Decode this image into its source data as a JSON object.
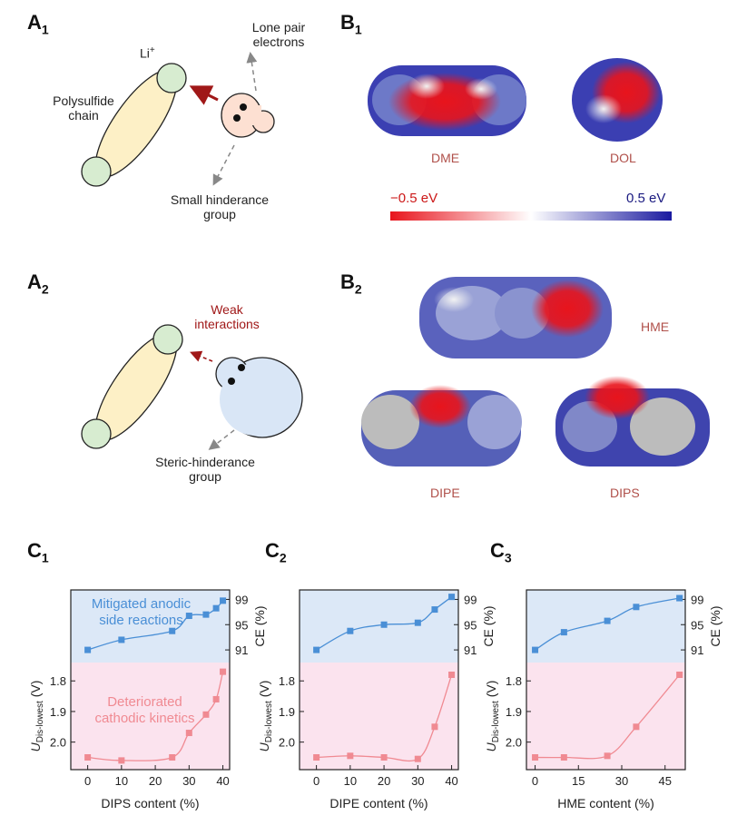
{
  "panels": {
    "a1": "A",
    "a1_sub": "1",
    "a2": "A",
    "a2_sub": "2",
    "b1": "B",
    "b1_sub": "1",
    "b2": "B",
    "b2_sub": "2",
    "c1": "C",
    "c1_sub": "1",
    "c2": "C",
    "c2_sub": "2",
    "c3": "C",
    "c3_sub": "3"
  },
  "schematic_a1": {
    "li_label": "Li",
    "li_sup": "+",
    "lone_pair": "Lone pair electrons",
    "polysulfide": "Polysulfide chain",
    "small_group": "Small hinderance group"
  },
  "schematic_a2": {
    "weak": "Weak interactions",
    "steric": "Steric-hinderance group"
  },
  "esp": {
    "dme": "DME",
    "dol": "DOL",
    "scale_min": "−0.5 eV",
    "scale_max": "0.5 eV",
    "hme": "HME",
    "dipe": "DIPE",
    "dips": "DIPS"
  },
  "colors": {
    "negative": "#e8141c",
    "positive": "#1a1aa0",
    "blue_series": "#4a8fd6",
    "pink_series": "#f08a92",
    "blue_bg": "#dce8f7",
    "pink_bg": "#fbe3ee",
    "dark_red": "#a01818"
  },
  "chart_data": [
    {
      "type": "line",
      "xlabel": "DIPS content (%)",
      "xlim": [
        -5,
        42
      ],
      "xticks": [
        0,
        10,
        20,
        30,
        40
      ],
      "x_ce": [
        0,
        10,
        25,
        30,
        35,
        38,
        40
      ],
      "ce": [
        91,
        92.6,
        94,
        96.4,
        96.6,
        97.6,
        98.8
      ],
      "ce_label": "CE (%)",
      "ce_ticks": [
        91,
        95,
        99
      ],
      "x_u": [
        0,
        10,
        25,
        30,
        35,
        38,
        40
      ],
      "u": [
        2.05,
        2.06,
        2.05,
        1.97,
        1.91,
        1.86,
        1.77
      ],
      "u_label_main": "U",
      "u_label_sub": "Dis-lowest",
      "u_label_unit": " (V)",
      "u_ticks": [
        "1.8",
        "1.9",
        "2.0"
      ],
      "u_tick_values": [
        1.8,
        1.9,
        2.0
      ],
      "annot_top": [
        "Mitigated anodic",
        "side reactions"
      ],
      "annot_bottom": [
        "Deteriorated",
        "cathodic kinetics"
      ]
    },
    {
      "type": "line",
      "xlabel": "DIPE content (%)",
      "xlim": [
        -5,
        42
      ],
      "xticks": [
        0,
        10,
        20,
        30,
        40
      ],
      "x_ce": [
        0,
        10,
        20,
        30,
        35,
        40
      ],
      "ce": [
        91,
        94,
        95,
        95.3,
        97.4,
        99.4
      ],
      "ce_label": "CE (%)",
      "ce_ticks": [
        91,
        95,
        99
      ],
      "x_u": [
        0,
        10,
        20,
        30,
        35,
        40
      ],
      "u": [
        2.05,
        2.045,
        2.05,
        2.055,
        1.95,
        1.78
      ],
      "u_label_main": "U",
      "u_label_sub": "Dis-lowest",
      "u_label_unit": " (V)",
      "u_ticks": [
        "1.8",
        "1.9",
        "2.0"
      ],
      "u_tick_values": [
        1.8,
        1.9,
        2.0
      ]
    },
    {
      "type": "line",
      "xlabel": "HME content (%)",
      "xlim": [
        -3,
        52
      ],
      "xticks": [
        0,
        15,
        30,
        45
      ],
      "x_ce": [
        0,
        10,
        25,
        35,
        50
      ],
      "ce": [
        91,
        93.8,
        95.6,
        97.8,
        99.2
      ],
      "ce_label": "CE (%)",
      "ce_ticks": [
        91,
        95,
        99
      ],
      "x_u": [
        0,
        10,
        25,
        35,
        50
      ],
      "u": [
        2.05,
        2.05,
        2.045,
        1.95,
        1.78
      ],
      "u_label_main": "U",
      "u_label_sub": "Dis-lowest",
      "u_label_unit": " (V)",
      "u_ticks": [
        "1.8",
        "1.9",
        "2.0"
      ],
      "u_tick_values": [
        1.8,
        1.9,
        2.0
      ]
    }
  ]
}
